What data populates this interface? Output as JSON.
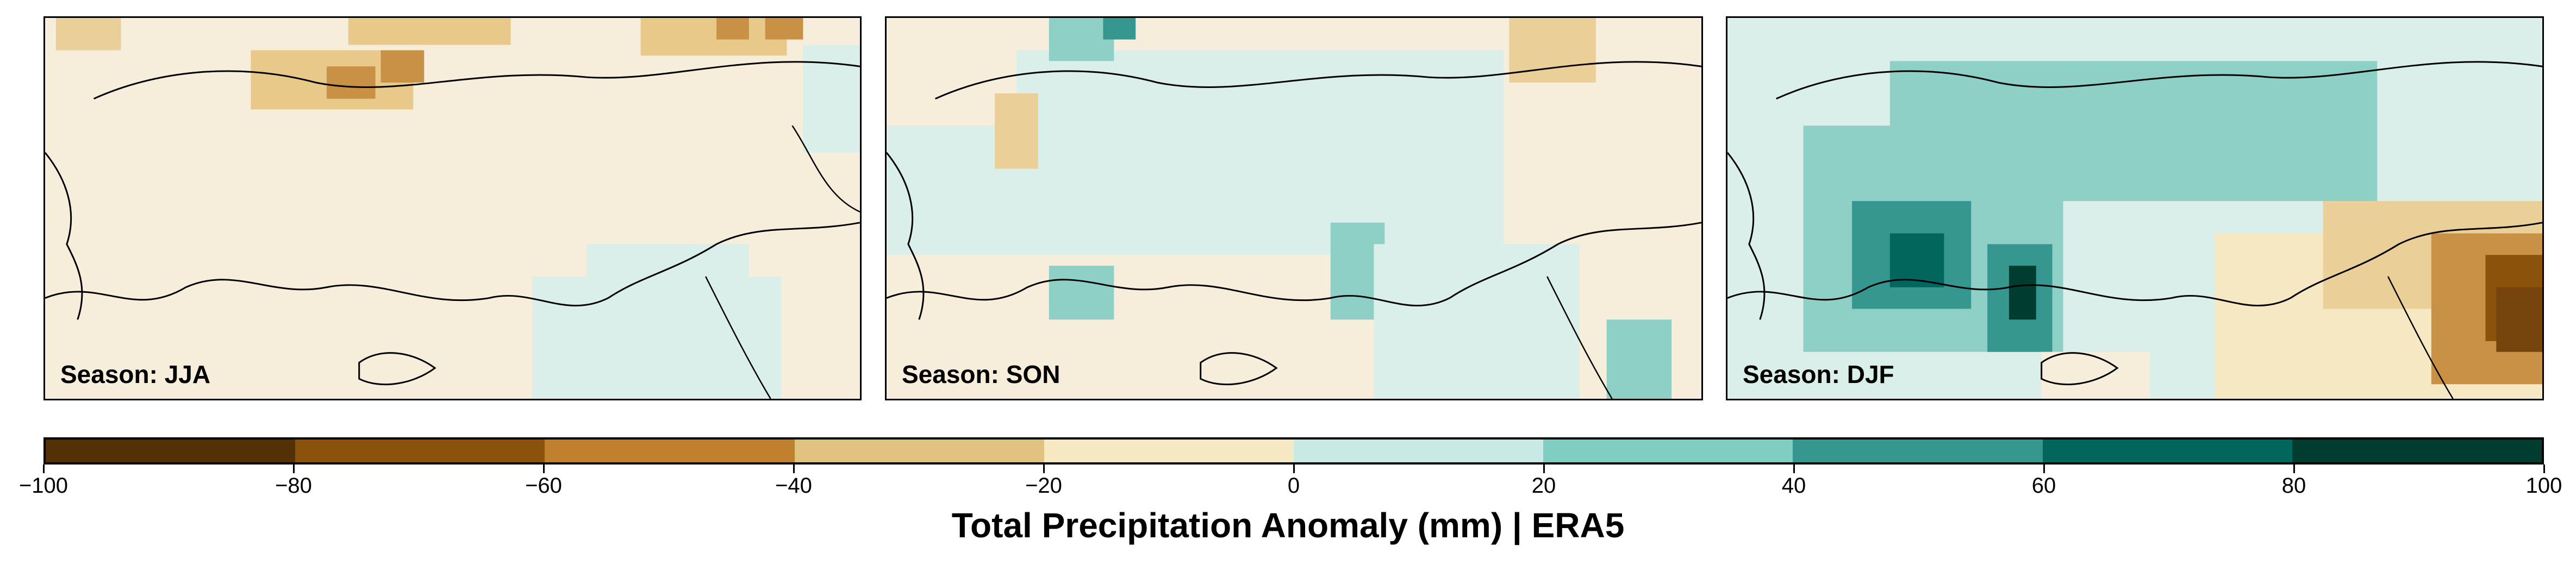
{
  "figure": {
    "colorbar_title": "Total Precipitation Anomaly (mm) | ERA5",
    "colormap": "BrBG",
    "colorbar": {
      "min": -100,
      "max": 100,
      "ticks": [
        "−100",
        "−80",
        "−60",
        "−40",
        "−20",
        "0",
        "20",
        "40",
        "60",
        "80",
        "100"
      ],
      "colors": [
        "#543005",
        "#8c510a",
        "#bf812d",
        "#dfc27d",
        "#f6e8c3",
        "#c7eae5",
        "#80cdc1",
        "#35978f",
        "#01665e",
        "#003c30"
      ]
    }
  },
  "panels": [
    {
      "label": "Season: JJA",
      "season": "JJA"
    },
    {
      "label": "Season: SON",
      "season": "SON"
    },
    {
      "label": "Season: DJF",
      "season": "DJF"
    }
  ]
}
